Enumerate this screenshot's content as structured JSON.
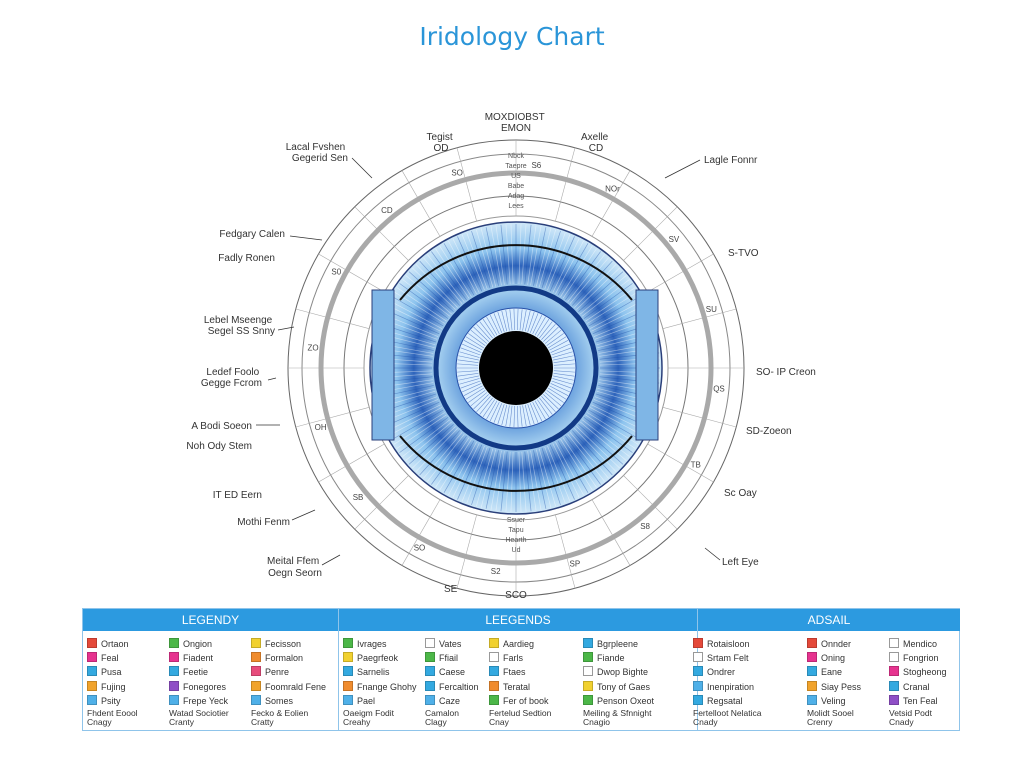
{
  "title": "Iridology Chart",
  "callouts": {
    "top_center": [
      "MOXDIOBST",
      "EMON"
    ],
    "top_left": [
      "Tegist",
      "OD"
    ],
    "top_right": [
      "Axelle",
      "CD"
    ],
    "upper_left": [
      "Lacal Fvshen",
      "Gegerid Sen"
    ],
    "upper_right": "Lagle Fonnr",
    "left_1": "Fedgary Calen",
    "left_2": "Fadly Ronen",
    "left_3": [
      "Lebel Mseenge",
      "Segel SS Snny"
    ],
    "left_4": [
      "Ledef Foolo",
      "Gegge Fcrom"
    ],
    "left_5": "A Bodi Soeon",
    "left_6": "Noh Ody Stem",
    "left_7": "IT ED Eern",
    "left_8": "Mothi Fenm",
    "bottom_left": [
      "Meital Ffem",
      "Oegn Seorn"
    ],
    "right_1": "S-TVO",
    "right_2": "SO- IP Creon",
    "right_3": "SD-Zoeon",
    "right_4": "Sc Oay",
    "right_5": "Left Eye",
    "bottom_center": [
      "SE",
      "SCO"
    ]
  },
  "ring_labels": {
    "outer": [
      "S6",
      "NOr",
      "SV",
      "SU",
      "QS",
      "TB",
      "S8",
      "SP",
      "S2",
      "SO",
      "SB",
      "OH",
      "ZO",
      "S0",
      "CD",
      "SO"
    ],
    "middle": [
      "Nbck",
      "Taepre",
      "US",
      "Babe",
      "Adag",
      "Lees"
    ],
    "inner_bottom": [
      "Ssuer",
      "Tapu",
      "Hearth",
      "Ud"
    ]
  },
  "colors": {
    "title": "#2a95d8",
    "legend_header": "#2c9ae0",
    "iris_deep": "#1f4fa8",
    "iris_light": "#a9d3f1",
    "pupil": "#000000"
  },
  "legend": {
    "headers": [
      "LEGENDY",
      "LEEGENDS",
      "ADSAIL"
    ],
    "columns": [
      {
        "items": [
          {
            "label": "Ortaon",
            "color": "#e4493a"
          },
          {
            "label": "Feal",
            "color": "#e6338f"
          },
          {
            "label": "Pusa",
            "color": "#33a9e0"
          },
          {
            "label": "Fujing",
            "color": "#f1a32b"
          },
          {
            "label": "Psity",
            "color": "#4fb0e8"
          }
        ],
        "footer": [
          "Fhdent Eoool",
          "Cnagy"
        ]
      },
      {
        "items": [
          {
            "label": "Ongion",
            "color": "#4cb748"
          },
          {
            "label": "Fiadent",
            "color": "#e6338f"
          },
          {
            "label": "Feetie",
            "color": "#33a9e0"
          },
          {
            "label": "Fonegores",
            "color": "#8f4fc6"
          },
          {
            "label": "Frepe Yeck",
            "color": "#4fb0e8"
          }
        ],
        "footer": [
          "Watad Sociotier",
          "Cranty"
        ]
      },
      {
        "items": [
          {
            "label": "Fecisson",
            "color": "#f1d130"
          },
          {
            "label": "Formalon",
            "color": "#f08c2e"
          },
          {
            "label": "Penre",
            "color": "#e74c7c"
          },
          {
            "label": "Foomrald Fene",
            "color": "#f1a32b"
          },
          {
            "label": "Somes",
            "color": "#4fb0e8"
          }
        ],
        "footer": [
          "Fecko & Eolien",
          "Cratty"
        ]
      },
      {
        "items": [
          {
            "label": "Ivrages",
            "color": "#4cb748"
          },
          {
            "label": "Paegrfeok",
            "color": "#f1d130"
          },
          {
            "label": "Sarnelis",
            "color": "#33a9e0"
          },
          {
            "label": "Fnange Ghohy",
            "color": "#f08c2e"
          },
          {
            "label": "Pael",
            "color": "#4fb0e8"
          }
        ],
        "footer": [
          "Oaeigm Fodit",
          "Creahy"
        ]
      },
      {
        "items": [
          {
            "label": "Vates",
            "color": "hollow"
          },
          {
            "label": "Ffiail",
            "color": "#4cb748"
          },
          {
            "label": "Caese",
            "color": "#33a9e0"
          },
          {
            "label": "Fercaltion",
            "color": "#33a9e0"
          },
          {
            "label": "Caze",
            "color": "#4fb0e8"
          }
        ],
        "footer": [
          "Camalon",
          "Clagy"
        ]
      },
      {
        "items": [
          {
            "label": "Aardieg",
            "color": "#f1d130"
          },
          {
            "label": "Farls",
            "color": "hollow"
          },
          {
            "label": "Ftaes",
            "color": "#33a9e0"
          },
          {
            "label": "Teratal",
            "color": "#f08c2e"
          },
          {
            "label": "Fer of book",
            "color": "#4cb748"
          }
        ],
        "footer": [
          "Fertelud Sedtion",
          "Cnay"
        ]
      },
      {
        "items": [
          {
            "label": "Bgrpleene",
            "color": "#33a9e0"
          },
          {
            "label": "Fiande",
            "color": "#4cb748"
          },
          {
            "label": "Dwop Bighte",
            "color": "hollow"
          },
          {
            "label": "Tony of Gaes",
            "color": "#f1d130"
          },
          {
            "label": "Penson Oxeot",
            "color": "#4cb748"
          }
        ],
        "footer": [
          "Meiling & Sfnnight",
          "Cnagio"
        ]
      },
      {
        "items": [
          {
            "label": "Rotaisloon",
            "color": "#e4493a"
          },
          {
            "label": "Srtam Felt",
            "color": "hollow"
          },
          {
            "label": "Ondrer",
            "color": "#33a9e0"
          },
          {
            "label": "Inenpiration",
            "color": "#4fb0e8"
          },
          {
            "label": "Regsatal",
            "color": "#33a9e0"
          }
        ],
        "footer": [
          "Fertelloot Nelatica",
          "Cnady"
        ]
      },
      {
        "items": [
          {
            "label": "Onnder",
            "color": "#e4493a"
          },
          {
            "label": "Oning",
            "color": "#e6338f"
          },
          {
            "label": "Eane",
            "color": "#33a9e0"
          },
          {
            "label": "Siay Pess",
            "color": "#f1a32b"
          },
          {
            "label": "Veling",
            "color": "#4fb0e8"
          }
        ],
        "footer": [
          "Molidt Sooel",
          "Crenry"
        ]
      },
      {
        "items": [
          {
            "label": "Mendico",
            "color": "hollow"
          },
          {
            "label": "Fongrion",
            "color": "hollow"
          },
          {
            "label": "Stogheong",
            "color": "#e6338f"
          },
          {
            "label": "Cranal",
            "color": "#33a9e0"
          },
          {
            "label": "Ten Feal",
            "color": "#8f4fc6"
          }
        ],
        "footer": [
          "Vetsid Podt",
          "Cnady"
        ]
      }
    ]
  }
}
